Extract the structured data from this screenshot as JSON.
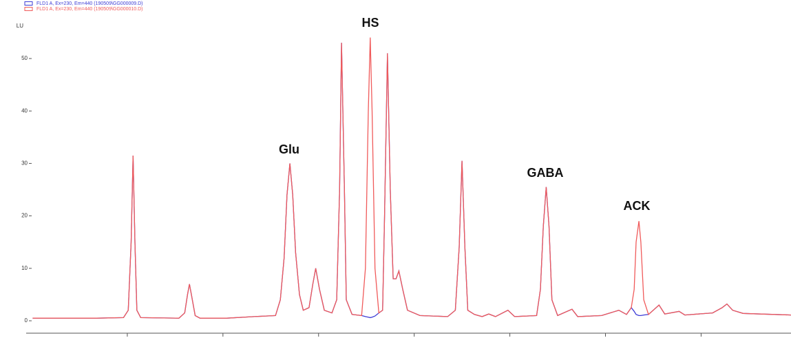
{
  "chart_data": {
    "type": "line",
    "y_label": "LU",
    "legend_corner": "top-left",
    "annotations": [
      "Glu",
      "HS",
      "GABA",
      "ACK"
    ],
    "xlim": [
      0,
      7.94
    ],
    "xticks": [
      1,
      2,
      3,
      4,
      5,
      6,
      7
    ],
    "ylim": [
      -1.8,
      56.5
    ],
    "yticks": [
      0,
      10,
      20,
      30,
      40,
      50
    ],
    "x": [
      0.01,
      0.68,
      0.96,
      1.01,
      1.04,
      1.06,
      1.08,
      1.1,
      1.14,
      1.54,
      1.6,
      1.63,
      1.65,
      1.67,
      1.71,
      1.76,
      2.04,
      2.33,
      2.55,
      2.6,
      2.64,
      2.67,
      2.7,
      2.73,
      2.76,
      2.8,
      2.84,
      2.9,
      2.94,
      2.97,
      3.01,
      3.06,
      3.14,
      3.19,
      3.22,
      3.24,
      3.27,
      3.29,
      3.35,
      3.45,
      3.49,
      3.52,
      3.54,
      3.56,
      3.59,
      3.63,
      3.67,
      3.69,
      3.72,
      3.75,
      3.78,
      3.81,
      3.84,
      3.88,
      3.93,
      4.06,
      4.35,
      4.43,
      4.47,
      4.5,
      4.53,
      4.56,
      4.63,
      4.71,
      4.78,
      4.85,
      4.98,
      5.05,
      5.28,
      5.32,
      5.35,
      5.38,
      5.41,
      5.44,
      5.5,
      5.65,
      5.71,
      5.96,
      6.14,
      6.22,
      6.27,
      6.3,
      6.32,
      6.35,
      6.37,
      6.4,
      6.45,
      6.56,
      6.62,
      6.77,
      6.83,
      7.12,
      7.22,
      7.27,
      7.33,
      7.44,
      7.94
    ],
    "series": [
      {
        "name": "FLD1 A, Ex=230, Em=440 (190509\\GG000009.D)",
        "color": "#3b3bd6",
        "values": [
          0.5,
          0.5,
          0.6,
          2,
          15,
          31.5,
          15,
          2,
          0.6,
          0.5,
          1.5,
          5,
          7,
          5,
          1,
          0.5,
          0.5,
          0.8,
          1,
          4,
          12,
          24,
          30,
          24,
          13,
          5,
          2,
          2.5,
          7,
          10,
          6,
          2,
          1.5,
          4,
          25,
          53,
          25,
          4,
          1.2,
          1,
          0.8,
          0.7,
          0.6,
          0.7,
          0.9,
          1.5,
          2,
          20,
          51,
          25,
          8,
          8,
          9.5,
          6,
          2,
          1,
          0.8,
          2,
          14,
          30.5,
          14,
          2,
          1.2,
          0.8,
          1.3,
          0.8,
          2,
          0.8,
          1,
          6,
          18,
          25.5,
          18,
          4,
          1,
          2.2,
          0.8,
          1,
          2,
          1.2,
          2.5,
          1.8,
          1.2,
          1.0,
          1.0,
          1.1,
          1.2,
          3,
          1.3,
          1.8,
          1.1,
          1.5,
          2.5,
          3.2,
          2,
          1.4,
          1.1
        ]
      },
      {
        "name": "FLD1 A, Ex=230, Em=440 (190509\\GG000010.D)",
        "color": "#f05a5a",
        "values": [
          0.5,
          0.5,
          0.6,
          2,
          15,
          31.5,
          15,
          2,
          0.6,
          0.5,
          1.5,
          5,
          7,
          5,
          1,
          0.5,
          0.5,
          0.8,
          1,
          4,
          12,
          24,
          30,
          24,
          13,
          5,
          2,
          2.5,
          7,
          10,
          6,
          2,
          1.5,
          4,
          25,
          53,
          25,
          4,
          1.2,
          1,
          10,
          40,
          54,
          40,
          10,
          1.5,
          2,
          20,
          51,
          25,
          8,
          8,
          9.5,
          6,
          2,
          1,
          0.8,
          2,
          14,
          30.5,
          14,
          2,
          1.2,
          0.8,
          1.3,
          0.8,
          2,
          0.8,
          1,
          6,
          18,
          25.5,
          18,
          4,
          1,
          2.2,
          0.8,
          1,
          2,
          1.2,
          2.5,
          6,
          15,
          19,
          15,
          4,
          1.2,
          3,
          1.3,
          1.8,
          1.1,
          1.5,
          2.5,
          3.2,
          2,
          1.4,
          1.1
        ]
      }
    ]
  }
}
